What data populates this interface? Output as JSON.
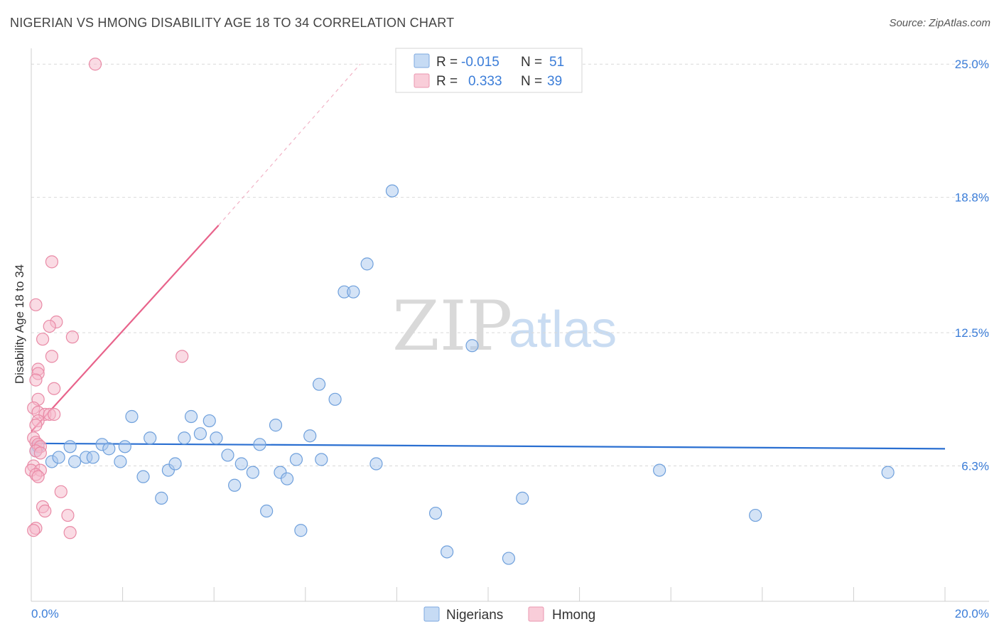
{
  "header": {
    "title": "NIGERIAN VS HMONG DISABILITY AGE 18 TO 34 CORRELATION CHART",
    "source": "Source: ZipAtlas.com"
  },
  "watermark": {
    "zip": "ZIP",
    "atlas": "atlas"
  },
  "legend": {
    "rows": [
      {
        "r_label": "R =",
        "r_value": "-0.015",
        "n_label": "N =",
        "n_value": "51",
        "color": "#a9c8ee"
      },
      {
        "r_label": "R =",
        "r_value": "0.333",
        "n_label": "N =",
        "n_value": "39",
        "color": "#f5b8c9"
      }
    ]
  },
  "bottom_legend": {
    "items": [
      "Nigerians",
      "Hmong"
    ]
  },
  "chart_data": {
    "type": "scatter",
    "title": "NIGERIAN VS HMONG DISABILITY AGE 18 TO 34 CORRELATION CHART",
    "xlabel": "",
    "ylabel": "Disability Age 18 to 34",
    "xlim": [
      0,
      20
    ],
    "ylim": [
      0,
      26
    ],
    "x_tick_labels": [
      "0.0%",
      "20.0%"
    ],
    "y_ticks": [
      6.3,
      12.5,
      18.8,
      25.0
    ],
    "y_tick_labels": [
      "6.3%",
      "12.5%",
      "18.8%",
      "25.0%"
    ],
    "grid": true,
    "legend_position": "top-center",
    "series": [
      {
        "name": "Nigerians",
        "color": "#a9c8ee",
        "stroke": "#6fa0dc",
        "r": -0.015,
        "n": 51,
        "trend": {
          "x": [
            0.0,
            20.0
          ],
          "y": [
            7.35,
            7.1
          ],
          "color": "#2a6fd1"
        },
        "points": [
          [
            0.15,
            7.2
          ],
          [
            0.45,
            6.5
          ],
          [
            0.6,
            6.7
          ],
          [
            0.85,
            7.2
          ],
          [
            0.95,
            6.5
          ],
          [
            1.2,
            6.7
          ],
          [
            1.35,
            6.7
          ],
          [
            1.55,
            7.3
          ],
          [
            1.7,
            7.1
          ],
          [
            1.95,
            6.5
          ],
          [
            2.05,
            7.2
          ],
          [
            2.2,
            8.6
          ],
          [
            2.45,
            5.8
          ],
          [
            2.6,
            7.6
          ],
          [
            2.85,
            4.8
          ],
          [
            3.0,
            6.1
          ],
          [
            3.15,
            6.4
          ],
          [
            3.35,
            7.6
          ],
          [
            3.5,
            8.6
          ],
          [
            3.7,
            7.8
          ],
          [
            3.9,
            8.4
          ],
          [
            4.05,
            7.6
          ],
          [
            4.3,
            6.8
          ],
          [
            4.45,
            5.4
          ],
          [
            4.6,
            6.4
          ],
          [
            4.85,
            6.0
          ],
          [
            5.0,
            7.3
          ],
          [
            5.15,
            4.2
          ],
          [
            5.35,
            8.2
          ],
          [
            5.45,
            6.0
          ],
          [
            5.6,
            5.7
          ],
          [
            5.8,
            6.6
          ],
          [
            5.9,
            3.3
          ],
          [
            6.1,
            7.7
          ],
          [
            6.3,
            10.1
          ],
          [
            6.35,
            6.6
          ],
          [
            6.65,
            9.4
          ],
          [
            6.85,
            14.4
          ],
          [
            7.05,
            14.4
          ],
          [
            7.35,
            15.7
          ],
          [
            7.55,
            6.4
          ],
          [
            7.9,
            19.1
          ],
          [
            8.85,
            4.1
          ],
          [
            9.1,
            2.3
          ],
          [
            9.65,
            11.9
          ],
          [
            10.45,
            2.0
          ],
          [
            10.75,
            4.8
          ],
          [
            13.75,
            6.1
          ],
          [
            15.85,
            4.0
          ],
          [
            18.75,
            6.0
          ],
          [
            0.1,
            7.0
          ]
        ]
      },
      {
        "name": "Hmong",
        "color": "#f5b8c9",
        "stroke": "#e98aa6",
        "r": 0.333,
        "n": 39,
        "trend": {
          "x": [
            0.0,
            4.1
          ],
          "y": [
            7.9,
            17.5
          ],
          "color": "#e8638b",
          "dashed_extension": {
            "x": [
              4.1,
              7.2
            ],
            "y": [
              17.5,
              25.0
            ]
          }
        },
        "points": [
          [
            1.4,
            25.0
          ],
          [
            0.45,
            15.8
          ],
          [
            0.1,
            13.8
          ],
          [
            0.55,
            13.0
          ],
          [
            0.4,
            12.8
          ],
          [
            0.25,
            12.2
          ],
          [
            0.9,
            12.3
          ],
          [
            3.3,
            11.4
          ],
          [
            0.45,
            11.4
          ],
          [
            0.15,
            10.8
          ],
          [
            0.15,
            10.6
          ],
          [
            0.1,
            10.3
          ],
          [
            0.5,
            9.9
          ],
          [
            0.15,
            9.4
          ],
          [
            0.05,
            9.0
          ],
          [
            0.15,
            8.8
          ],
          [
            0.3,
            8.7
          ],
          [
            0.4,
            8.7
          ],
          [
            0.5,
            8.7
          ],
          [
            0.15,
            8.4
          ],
          [
            0.1,
            8.2
          ],
          [
            0.05,
            7.6
          ],
          [
            0.1,
            7.4
          ],
          [
            0.15,
            7.3
          ],
          [
            0.2,
            7.2
          ],
          [
            0.1,
            7.0
          ],
          [
            0.2,
            6.9
          ],
          [
            0.05,
            6.3
          ],
          [
            0.0,
            6.1
          ],
          [
            0.2,
            6.1
          ],
          [
            0.1,
            5.9
          ],
          [
            0.15,
            5.8
          ],
          [
            0.65,
            5.1
          ],
          [
            0.25,
            4.4
          ],
          [
            0.3,
            4.2
          ],
          [
            0.8,
            4.0
          ],
          [
            0.1,
            3.4
          ],
          [
            0.85,
            3.2
          ],
          [
            0.05,
            3.3
          ]
        ]
      }
    ]
  }
}
